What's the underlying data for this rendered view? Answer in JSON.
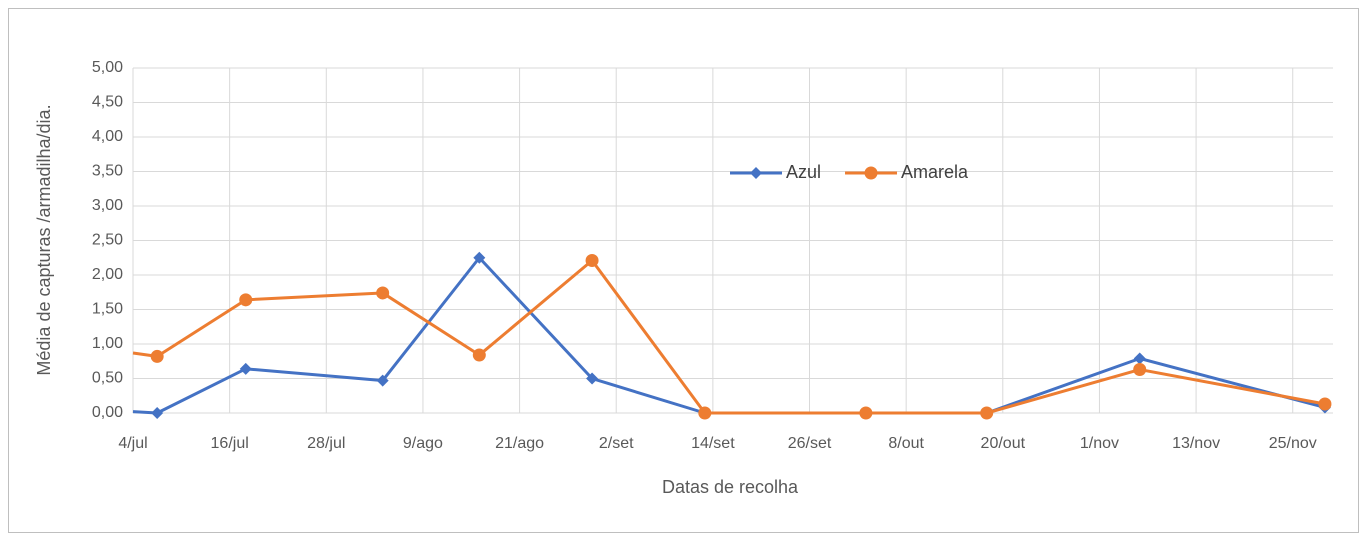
{
  "chart_data": {
    "type": "line",
    "x_label": "Datas de recolha",
    "y_label": "Média de capturas /armadilha/dia.",
    "x": [
      "07-04",
      "07-07",
      "07-18",
      "08-04",
      "08-16",
      "08-30",
      "09-13",
      "10-03",
      "10-18",
      "11-06",
      "11-29"
    ],
    "series": [
      {
        "name": "Azul",
        "color": "#4472c4",
        "marker": "diamond",
        "values": [
          0.02,
          0.0,
          0.64,
          0.47,
          2.25,
          0.5,
          0.0,
          0.0,
          0.0,
          0.79,
          0.08
        ]
      },
      {
        "name": "Amarela",
        "color": "#ed7d31",
        "marker": "circle",
        "values": [
          0.87,
          0.82,
          1.64,
          1.74,
          0.84,
          2.21,
          0.0,
          0.0,
          0.0,
          0.63,
          0.13
        ]
      }
    ],
    "xlim": [
      "07-04",
      "11-30"
    ],
    "xticks": [
      {
        "value": "07-04",
        "label": "4/jul"
      },
      {
        "value": "07-16",
        "label": "16/jul"
      },
      {
        "value": "07-28",
        "label": "28/jul"
      },
      {
        "value": "08-09",
        "label": "9/ago"
      },
      {
        "value": "08-21",
        "label": "21/ago"
      },
      {
        "value": "09-02",
        "label": "2/set"
      },
      {
        "value": "09-14",
        "label": "14/set"
      },
      {
        "value": "09-26",
        "label": "26/set"
      },
      {
        "value": "10-08",
        "label": "8/out"
      },
      {
        "value": "10-20",
        "label": "20/out"
      },
      {
        "value": "11-01",
        "label": "1/nov"
      },
      {
        "value": "11-13",
        "label": "13/nov"
      },
      {
        "value": "11-25",
        "label": "25/nov"
      }
    ],
    "ylim": [
      0,
      5
    ],
    "yticks": [
      {
        "value": 0,
        "label": "0,00"
      },
      {
        "value": 0.5,
        "label": "0,50"
      },
      {
        "value": 1,
        "label": "1,00"
      },
      {
        "value": 1.5,
        "label": "1,50"
      },
      {
        "value": 2,
        "label": "2,00"
      },
      {
        "value": 2.5,
        "label": "2,50"
      },
      {
        "value": 3,
        "label": "3,00"
      },
      {
        "value": 3.5,
        "label": "3,50"
      },
      {
        "value": 4,
        "label": "4,00"
      },
      {
        "value": 4.5,
        "label": "4,50"
      },
      {
        "value": 5,
        "label": "5,00"
      }
    ],
    "grid": true
  }
}
